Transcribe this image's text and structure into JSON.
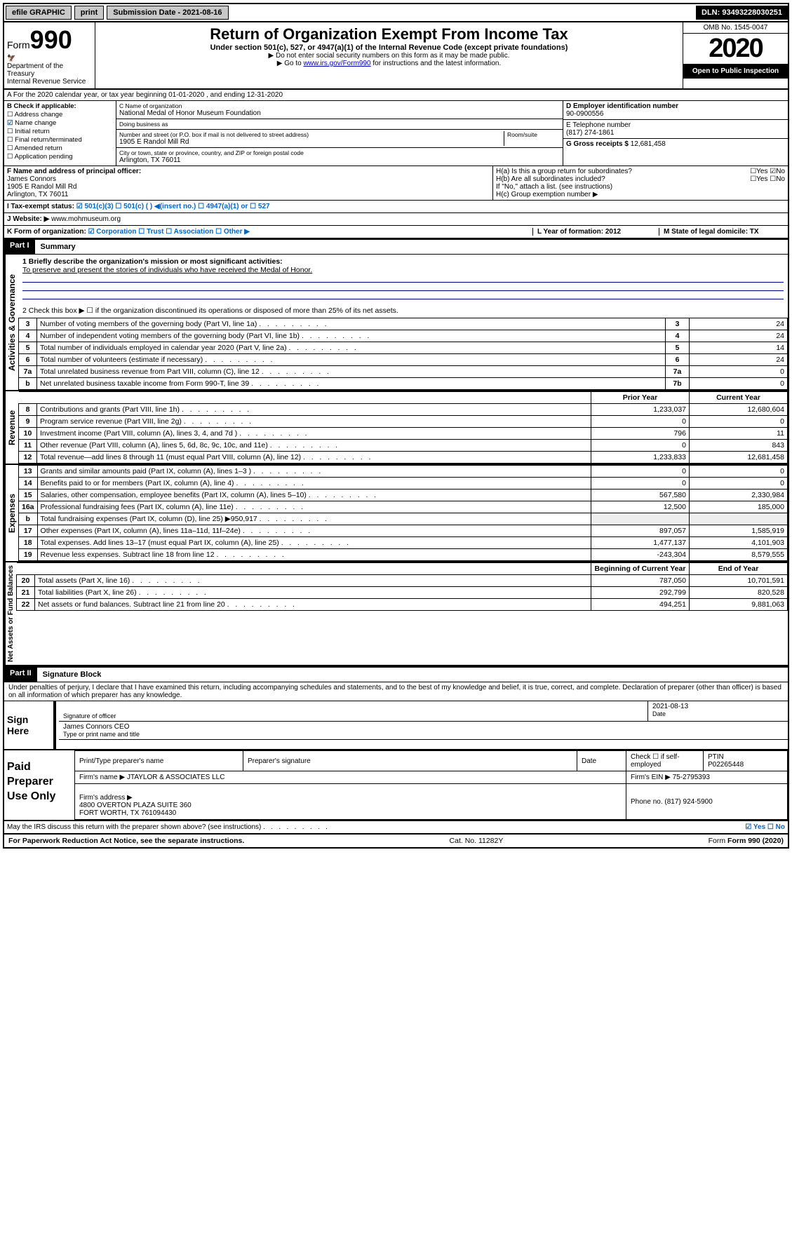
{
  "topbar": {
    "efile": "efile GRAPHIC",
    "print": "print",
    "subdate_label": "Submission Date - 2021-08-16",
    "dln": "DLN: 93493228030251"
  },
  "header": {
    "form_prefix": "Form",
    "form_num": "990",
    "dept": "Department of the Treasury\nInternal Revenue Service",
    "title": "Return of Organization Exempt From Income Tax",
    "sub": "Under section 501(c), 527, or 4947(a)(1) of the Internal Revenue Code (except private foundations)",
    "note1": "▶ Do not enter social security numbers on this form as it may be made public.",
    "note2_pre": "▶ Go to ",
    "note2_link": "www.irs.gov/Form990",
    "note2_post": " for instructions and the latest information.",
    "omb": "OMB No. 1545-0047",
    "year": "2020",
    "open": "Open to Public Inspection"
  },
  "rowA": "A For the 2020 calendar year, or tax year beginning 01-01-2020   , and ending 12-31-2020",
  "colB": {
    "hdr": "B Check if applicable:",
    "items": [
      "Address change",
      "Name change",
      "Initial return",
      "Final return/terminated",
      "Amended return",
      "Application pending"
    ],
    "checked_index": 1
  },
  "colC": {
    "cname_lbl": "C Name of organization",
    "cname": "National Medal of Honor Museum Foundation",
    "dba_lbl": "Doing business as",
    "addr_lbl": "Number and street (or P.O. box if mail is not delivered to street address)",
    "room_lbl": "Room/suite",
    "addr": "1905 E Randol Mill Rd",
    "city_lbl": "City or town, state or province, country, and ZIP or foreign postal code",
    "city": "Arlington, TX  76011"
  },
  "colD": {
    "ein_lbl": "D Employer identification number",
    "ein": "90-0900556",
    "tel_lbl": "E Telephone number",
    "tel": "(817) 274-1861",
    "gross_lbl": "G Gross receipts $",
    "gross": "12,681,458"
  },
  "rowF": {
    "f_lbl": "F Name and address of principal officer:",
    "f_name": "James Connors",
    "f_addr1": "1905 E Randol Mill Rd",
    "f_addr2": "Arlington, TX  76011"
  },
  "rowH": {
    "h_a": "H(a)  Is this a group return for subordinates?",
    "h_a_ans": "☐Yes ☑No",
    "h_b": "H(b)  Are all subordinates included?",
    "h_b_ans": "☐Yes ☐No",
    "h_b_note": "If \"No,\" attach a list. (see instructions)",
    "h_c": "H(c)  Group exemption number ▶"
  },
  "rowI": {
    "lbl": "I  Tax-exempt status:",
    "opts": "☑ 501(c)(3)   ☐ 501(c) (  ) ◀(insert no.)   ☐ 4947(a)(1) or   ☐ 527"
  },
  "rowJ": {
    "lbl": "J  Website: ▶",
    "val": "www.mohmuseum.org"
  },
  "rowK": {
    "lbl": "K Form of organization:",
    "opts": "☑ Corporation  ☐ Trust  ☐ Association  ☐ Other ▶",
    "L": "L Year of formation: 2012",
    "M": "M State of legal domicile: TX"
  },
  "part1": {
    "label": "Part I",
    "title": "Summary",
    "tab1": "Activities & Governance",
    "tab2": "Revenue",
    "tab3": "Expenses",
    "tab4": "Net Assets or Fund Balances",
    "line1_lbl": "1  Briefly describe the organization's mission or most significant activities:",
    "line1_val": "To preserve and present the stories of individuals who have received the Medal of Honor.",
    "line2": "2    Check this box ▶ ☐  if the organization discontinued its operations or disposed of more than 25% of its net assets.",
    "govlines": [
      {
        "n": "3",
        "t": "Number of voting members of the governing body (Part VI, line 1a)",
        "b": "3",
        "v": "24"
      },
      {
        "n": "4",
        "t": "Number of independent voting members of the governing body (Part VI, line 1b)",
        "b": "4",
        "v": "24"
      },
      {
        "n": "5",
        "t": "Total number of individuals employed in calendar year 2020 (Part V, line 2a)",
        "b": "5",
        "v": "14"
      },
      {
        "n": "6",
        "t": "Total number of volunteers (estimate if necessary)",
        "b": "6",
        "v": "24"
      },
      {
        "n": "7a",
        "t": "Total unrelated business revenue from Part VIII, column (C), line 12",
        "b": "7a",
        "v": "0"
      },
      {
        "n": "b",
        "t": "Net unrelated business taxable income from Form 990-T, line 39",
        "b": "7b",
        "v": "0"
      }
    ],
    "col_prev": "Prior Year",
    "col_curr": "Current Year",
    "revlines": [
      {
        "n": "8",
        "t": "Contributions and grants (Part VIII, line 1h)",
        "p": "1,233,037",
        "c": "12,680,604"
      },
      {
        "n": "9",
        "t": "Program service revenue (Part VIII, line 2g)",
        "p": "0",
        "c": "0"
      },
      {
        "n": "10",
        "t": "Investment income (Part VIII, column (A), lines 3, 4, and 7d )",
        "p": "796",
        "c": "11"
      },
      {
        "n": "11",
        "t": "Other revenue (Part VIII, column (A), lines 5, 6d, 8c, 9c, 10c, and 11e)",
        "p": "0",
        "c": "843"
      },
      {
        "n": "12",
        "t": "Total revenue—add lines 8 through 11 (must equal Part VIII, column (A), line 12)",
        "p": "1,233,833",
        "c": "12,681,458"
      }
    ],
    "explines": [
      {
        "n": "13",
        "t": "Grants and similar amounts paid (Part IX, column (A), lines 1–3 )",
        "p": "0",
        "c": "0"
      },
      {
        "n": "14",
        "t": "Benefits paid to or for members (Part IX, column (A), line 4)",
        "p": "0",
        "c": "0"
      },
      {
        "n": "15",
        "t": "Salaries, other compensation, employee benefits (Part IX, column (A), lines 5–10)",
        "p": "567,580",
        "c": "2,330,984"
      },
      {
        "n": "16a",
        "t": "Professional fundraising fees (Part IX, column (A), line 11e)",
        "p": "12,500",
        "c": "185,000"
      },
      {
        "n": "b",
        "t": "Total fundraising expenses (Part IX, column (D), line 25) ▶950,917",
        "p": "",
        "c": ""
      },
      {
        "n": "17",
        "t": "Other expenses (Part IX, column (A), lines 11a–11d, 11f–24e)",
        "p": "897,057",
        "c": "1,585,919"
      },
      {
        "n": "18",
        "t": "Total expenses. Add lines 13–17 (must equal Part IX, column (A), line 25)",
        "p": "1,477,137",
        "c": "4,101,903"
      },
      {
        "n": "19",
        "t": "Revenue less expenses. Subtract line 18 from line 12",
        "p": "-243,304",
        "c": "8,579,555"
      }
    ],
    "col_boy": "Beginning of Current Year",
    "col_eoy": "End of Year",
    "netlines": [
      {
        "n": "20",
        "t": "Total assets (Part X, line 16)",
        "p": "787,050",
        "c": "10,701,591"
      },
      {
        "n": "21",
        "t": "Total liabilities (Part X, line 26)",
        "p": "292,799",
        "c": "820,528"
      },
      {
        "n": "22",
        "t": "Net assets or fund balances. Subtract line 21 from line 20",
        "p": "494,251",
        "c": "9,881,063"
      }
    ]
  },
  "part2": {
    "label": "Part II",
    "title": "Signature Block",
    "perjury": "Under penalties of perjury, I declare that I have examined this return, including accompanying schedules and statements, and to the best of my knowledge and belief, it is true, correct, and complete. Declaration of preparer (other than officer) is based on all information of which preparer has any knowledge.",
    "signhere": "Sign Here",
    "sig_officer": "Signature of officer",
    "sig_date": "2021-08-13",
    "sig_date_lbl": "Date",
    "sig_name": "James Connors  CEO",
    "sig_name_lbl": "Type or print name and title"
  },
  "paid": {
    "label": "Paid Preparer Use Only",
    "h1": "Print/Type preparer's name",
    "h2": "Preparer's signature",
    "h3": "Date",
    "h4_lbl": "Check ☐ if self-employed",
    "h5_lbl": "PTIN",
    "ptin": "P02265448",
    "firmname_lbl": "Firm's name   ▶",
    "firmname": "JTAYLOR & ASSOCIATES LLC",
    "firmein_lbl": "Firm's EIN ▶",
    "firmein": "75-2795393",
    "firmaddr_lbl": "Firm's address ▶",
    "firmaddr": "4800 OVERTON PLAZA SUITE 360\nFORT WORTH, TX  761094430",
    "phone_lbl": "Phone no.",
    "phone": "(817) 924-5900"
  },
  "discuss": {
    "q": "May the IRS discuss this return with the preparer shown above? (see instructions)",
    "ans": "☑ Yes  ☐ No"
  },
  "footer": {
    "left": "For Paperwork Reduction Act Notice, see the separate instructions.",
    "mid": "Cat. No. 11282Y",
    "right": "Form 990 (2020)"
  }
}
